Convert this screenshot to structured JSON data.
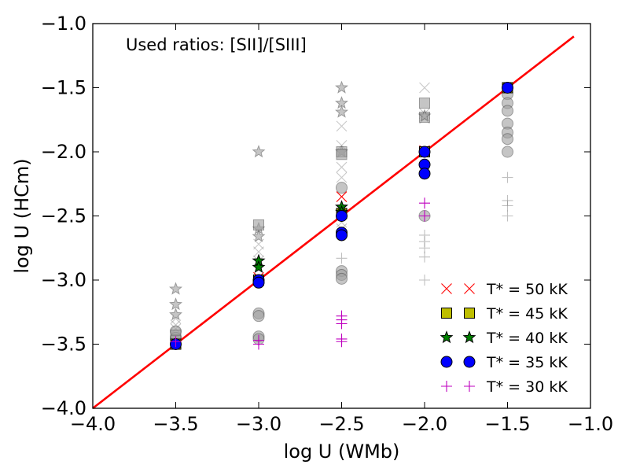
{
  "chart_data": {
    "type": "scatter",
    "title": "",
    "annotation": "Used ratios: [SII]/[SIII]",
    "xlabel": "log U (WMb)",
    "ylabel": "log U (HCm)",
    "xlim": [
      -4.0,
      -1.0
    ],
    "ylim": [
      -4.0,
      -1.0
    ],
    "xticks": [
      -4.0,
      -3.5,
      -3.0,
      -2.5,
      -2.0,
      -1.5,
      -1.0
    ],
    "yticks": [
      -4.0,
      -3.5,
      -3.0,
      -2.5,
      -2.0,
      -1.5,
      -1.0
    ],
    "xtick_labels": [
      "−4.0",
      "−3.5",
      "−3.0",
      "−2.5",
      "−2.0",
      "−1.5",
      "−1.0"
    ],
    "ytick_labels": [
      "−4.0",
      "−3.5",
      "−3.0",
      "−2.5",
      "−2.0",
      "−1.5",
      "−1.0"
    ],
    "identity_line": {
      "x": [
        -4.0,
        -1.1
      ],
      "y": [
        -4.0,
        -1.1
      ],
      "color": "#ff0000"
    },
    "legend": [
      {
        "label": "T* = 50 kK",
        "marker": "x",
        "color": "#ff0000"
      },
      {
        "label": "T* = 45 kK",
        "marker": "square",
        "color": "#bfbf00"
      },
      {
        "label": "T* = 40 kK",
        "marker": "star",
        "color": "#008000"
      },
      {
        "label": "T* = 35 kK",
        "marker": "circle",
        "color": "#0000ff"
      },
      {
        "label": "T* = 30 kK",
        "marker": "plus",
        "color": "#bf00bf"
      }
    ],
    "background_series": [
      {
        "marker": "star",
        "x": -3.5,
        "y": [
          -3.07,
          -3.19,
          -3.27
        ]
      },
      {
        "marker": "x",
        "x": -3.5,
        "y": [
          -3.3,
          -3.35,
          -3.38
        ]
      },
      {
        "marker": "circle",
        "x": -3.5,
        "y": [
          -3.4,
          -3.45
        ]
      },
      {
        "marker": "square",
        "x": -3.5,
        "y": [
          -3.43,
          -3.47
        ]
      },
      {
        "marker": "star",
        "x": -3.0,
        "y": [
          -2.0,
          -2.6,
          -2.66
        ]
      },
      {
        "marker": "square",
        "x": -3.0,
        "y": [
          -2.57
        ]
      },
      {
        "marker": "x",
        "x": -3.0,
        "y": [
          -2.72,
          -2.78,
          -2.85
        ]
      },
      {
        "marker": "circle",
        "x": -3.0,
        "y": [
          -3.26,
          -3.28,
          -3.44,
          -3.46
        ]
      },
      {
        "marker": "star",
        "x": -2.5,
        "y": [
          -1.5,
          -1.62,
          -1.69,
          -2.0
        ]
      },
      {
        "marker": "x",
        "x": -2.5,
        "y": [
          -1.8,
          -1.95,
          -2.12,
          -2.2,
          -2.55,
          -2.6
        ]
      },
      {
        "marker": "square",
        "x": -2.5,
        "y": [
          -2.0,
          -2.02
        ]
      },
      {
        "marker": "circle",
        "x": -2.5,
        "y": [
          -2.28,
          -2.93,
          -2.96,
          -2.99
        ]
      },
      {
        "marker": "plus",
        "x": -2.5,
        "y": [
          -2.83
        ]
      },
      {
        "marker": "x",
        "x": -2.0,
        "y": [
          -1.5,
          -1.7,
          -1.74
        ]
      },
      {
        "marker": "square",
        "x": -2.0,
        "y": [
          -1.62,
          -1.73
        ]
      },
      {
        "marker": "star",
        "x": -2.0,
        "y": [
          -1.72
        ]
      },
      {
        "marker": "circle",
        "x": -2.0,
        "y": [
          -2.5
        ]
      },
      {
        "marker": "plus",
        "x": -2.0,
        "y": [
          -2.65,
          -2.7,
          -2.75,
          -2.82,
          -3.0
        ]
      },
      {
        "marker": "circle",
        "x": -1.5,
        "y": [
          -1.55,
          -1.62,
          -1.68,
          -1.78,
          -1.85,
          -1.9,
          -2.0
        ]
      },
      {
        "marker": "plus",
        "x": -1.5,
        "y": [
          -2.2,
          -2.38,
          -2.42,
          -2.5
        ]
      }
    ],
    "series": [
      {
        "name": "T* = 50 kK",
        "marker": "x",
        "color": "#ff0000",
        "points": [
          [
            -3.0,
            -2.98
          ],
          [
            -2.5,
            -2.35
          ],
          [
            -2.0,
            -1.99
          ]
        ]
      },
      {
        "name": "T* = 45 kK",
        "marker": "square",
        "color": "#bfbf00",
        "points": [
          [
            -3.5,
            -3.5
          ],
          [
            -3.0,
            -3.0
          ],
          [
            -2.5,
            -2.48
          ],
          [
            -2.0,
            -2.0
          ],
          [
            -1.5,
            -1.5
          ]
        ]
      },
      {
        "name": "T* = 40 kK",
        "marker": "star",
        "color": "#008000",
        "points": [
          [
            -3.0,
            -2.85
          ],
          [
            -3.0,
            -2.9
          ],
          [
            -2.5,
            -2.43
          ],
          [
            -2.5,
            -2.47
          ]
        ]
      },
      {
        "name": "T* = 35 kK",
        "marker": "circle",
        "color": "#0000ff",
        "points": [
          [
            -3.5,
            -3.5
          ],
          [
            -3.0,
            -3.0
          ],
          [
            -3.0,
            -3.02
          ],
          [
            -2.5,
            -2.5
          ],
          [
            -2.5,
            -2.63
          ],
          [
            -2.5,
            -2.65
          ],
          [
            -2.0,
            -2.0
          ],
          [
            -2.0,
            -2.1
          ],
          [
            -2.0,
            -2.17
          ],
          [
            -1.5,
            -1.5
          ]
        ]
      },
      {
        "name": "T* = 30 kK",
        "marker": "plus",
        "color": "#bf00bf",
        "points": [
          [
            -3.5,
            -3.48
          ],
          [
            -3.0,
            -3.47
          ],
          [
            -3.0,
            -3.5
          ],
          [
            -2.5,
            -3.28
          ],
          [
            -2.5,
            -3.31
          ],
          [
            -2.5,
            -3.34
          ],
          [
            -2.5,
            -3.46
          ],
          [
            -2.5,
            -3.48
          ],
          [
            -2.0,
            -2.4
          ],
          [
            -2.0,
            -2.5
          ]
        ]
      }
    ]
  }
}
